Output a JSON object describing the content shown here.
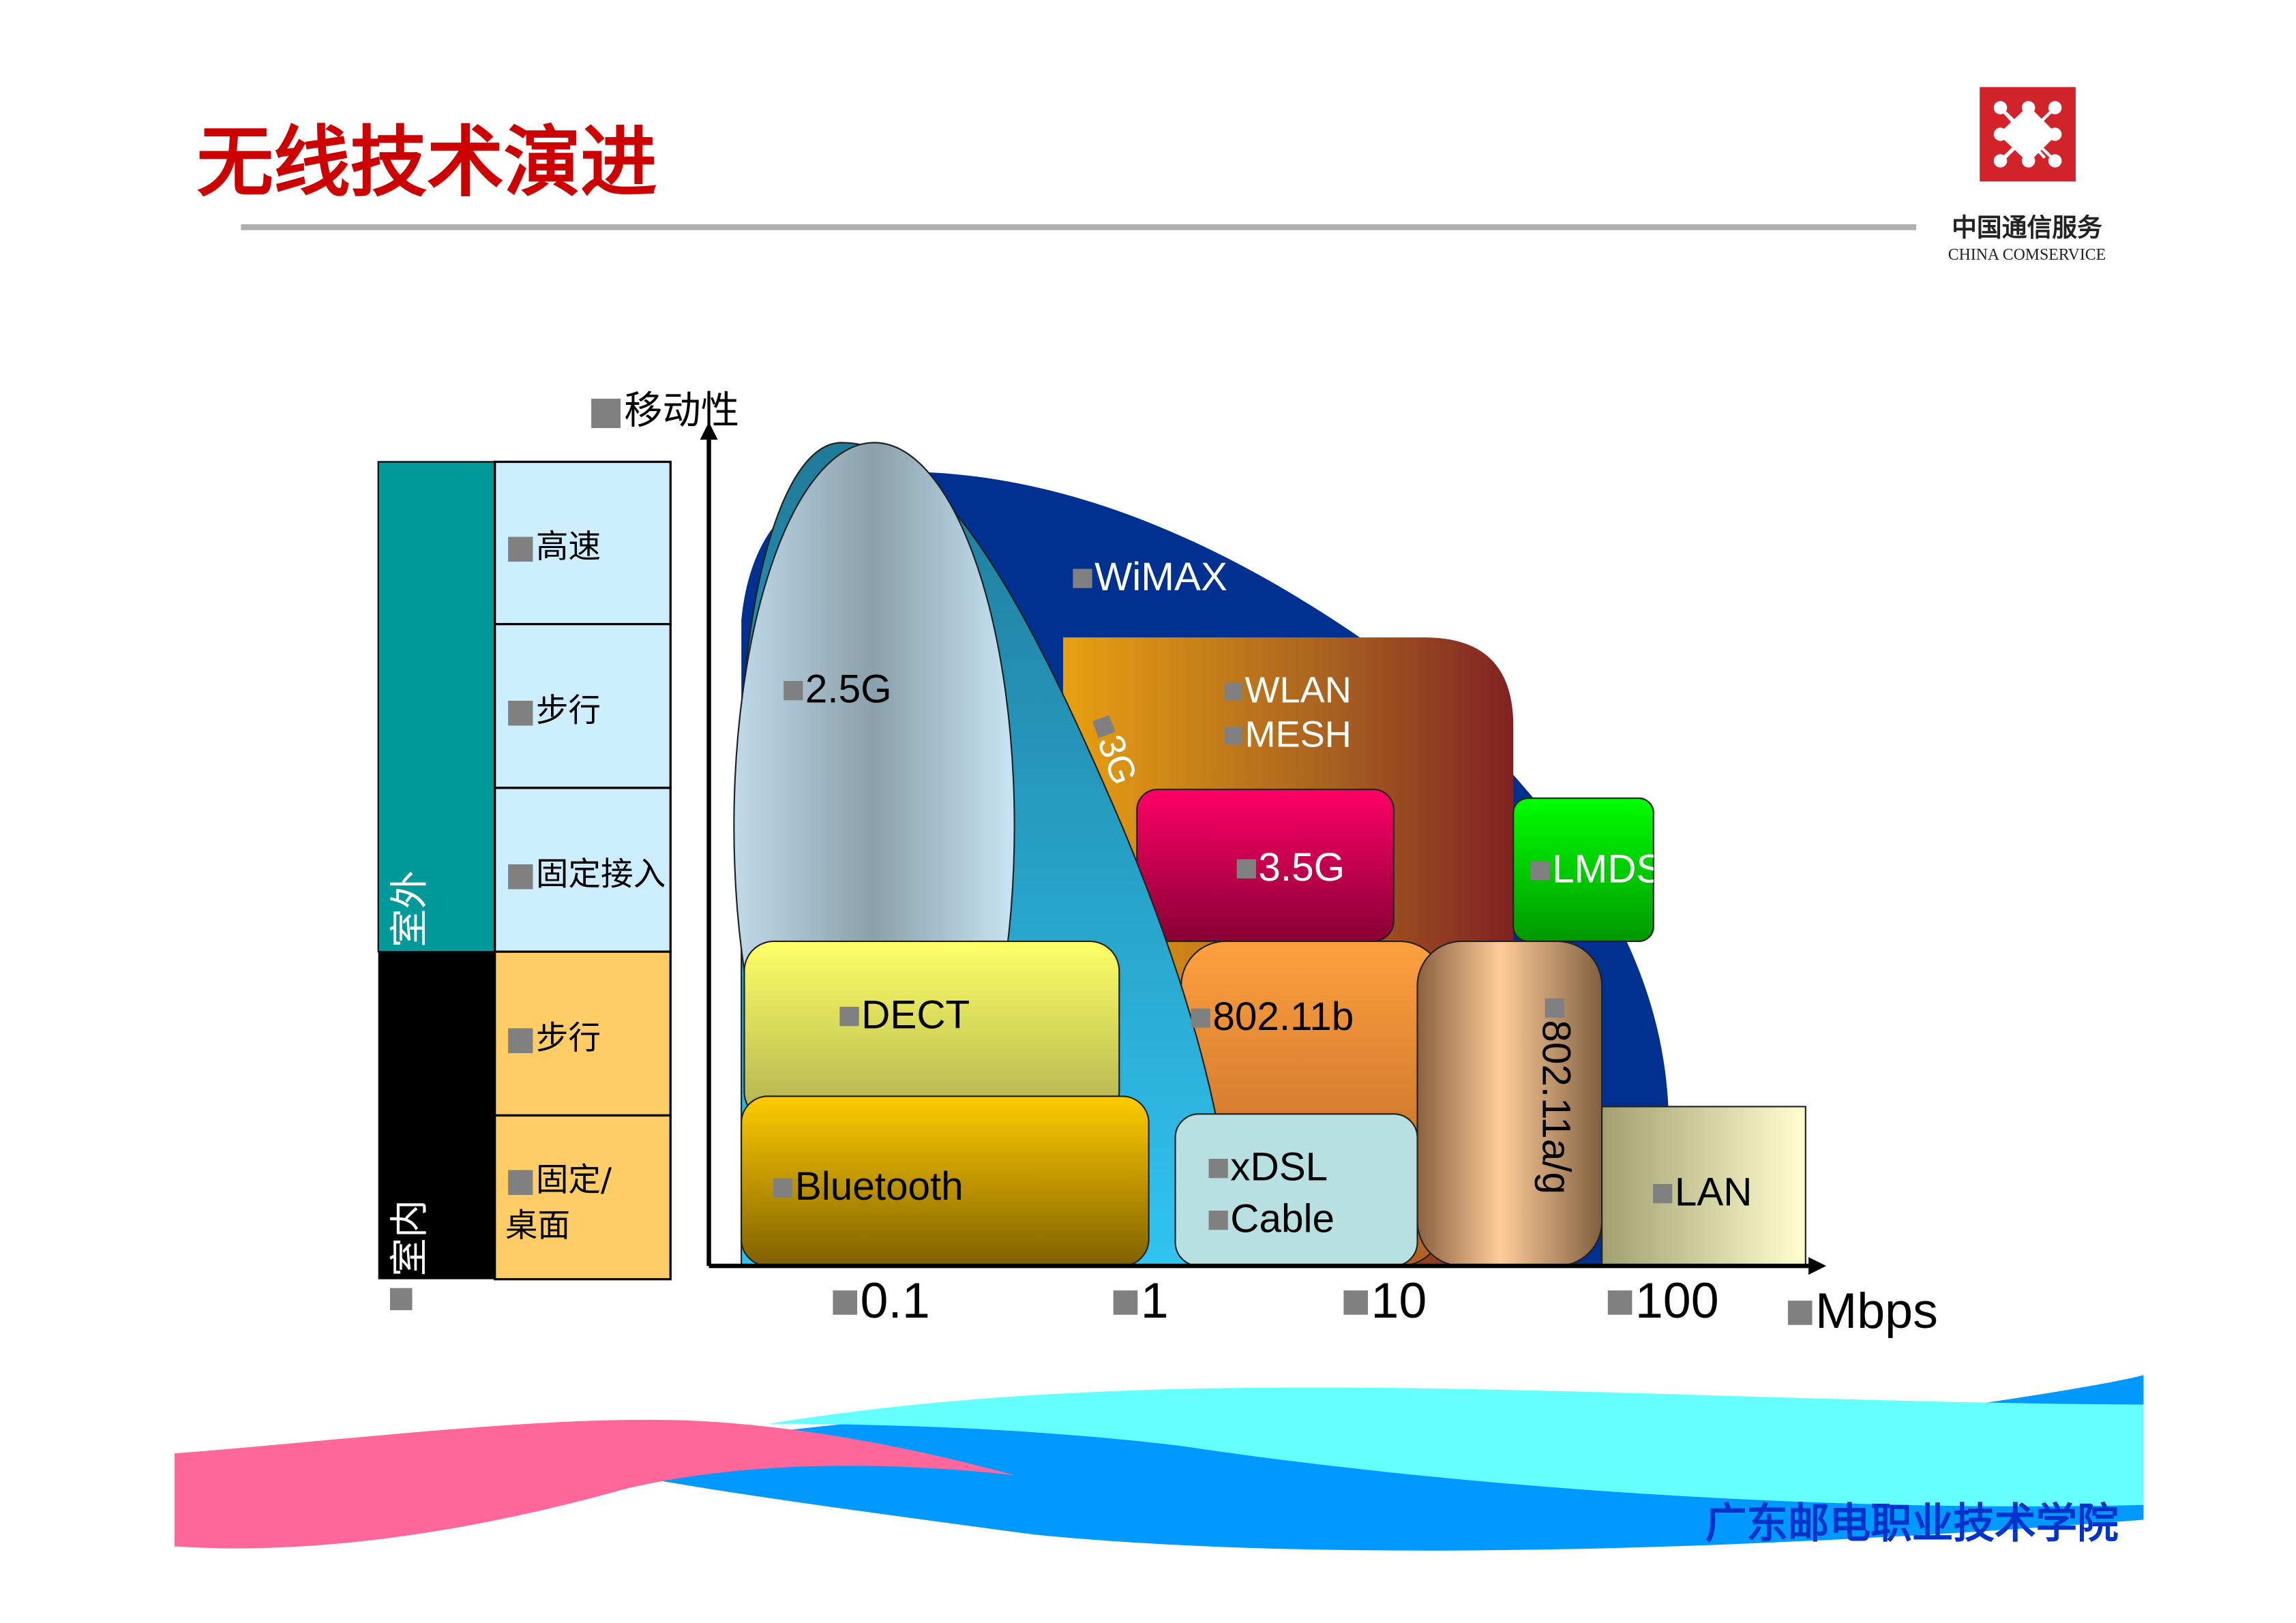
{
  "slide": {
    "title": "无线技术演进",
    "logo": {
      "cn": "中国通信服务",
      "en": "CHINA COMSERVICE",
      "color": "#d2232a"
    },
    "footer": "广东邮电职业技术学院",
    "title_color": "#cc0000"
  },
  "diagram": {
    "y_axis_label": "移动性",
    "x_axis_unit": "Mbps",
    "x_ticks": [
      "0.1",
      "1",
      "10",
      "100"
    ],
    "groups": [
      {
        "label": "室外",
        "color": "#009999",
        "rows": [
          "高速",
          "步行",
          "固定接入"
        ]
      },
      {
        "label": "室内",
        "color": "#000000",
        "rows": [
          "步行",
          "固定/",
          "桌面"
        ]
      }
    ],
    "technologies": {
      "wimax": "WiMAX",
      "wlan": "WLAN",
      "mesh": "MESH",
      "g25": "2.5G",
      "g3": "3G",
      "g35": "3.5G",
      "lmds": "LMDS",
      "dect": "DECT",
      "b80211": "802.11b",
      "ag80211": "802.11a/g",
      "bluetooth": "Bluetooth",
      "xdsl": "xDSL",
      "cable": "Cable",
      "lan": "LAN"
    }
  }
}
